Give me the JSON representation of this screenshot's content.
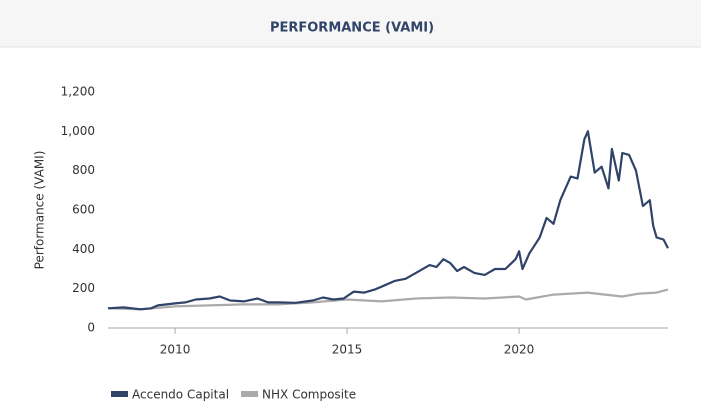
{
  "chart_data": {
    "type": "line",
    "title": "PERFORMANCE (VAMI)",
    "y_label": "Performance (VAMI)",
    "xlim": [
      2008.05,
      2024.33
    ],
    "xticks": [
      2010,
      2015,
      2020
    ],
    "ylim": [
      0,
      1200
    ],
    "yticks": [
      0,
      200,
      400,
      600,
      800,
      {
        "value": 1000,
        "label": "1,000"
      },
      {
        "value": 1200,
        "label": "1,200"
      }
    ],
    "grid": false,
    "legend": "bottom-left",
    "series": [
      {
        "name": "Accendo Capital",
        "color": "#2f4468",
        "x": [
          2008.05,
          2008.5,
          2009.0,
          2009.3,
          2009.5,
          2010.0,
          2010.3,
          2010.6,
          2011.0,
          2011.3,
          2011.6,
          2012.0,
          2012.4,
          2012.7,
          2013.0,
          2013.5,
          2014.0,
          2014.3,
          2014.6,
          2014.9,
          2015.2,
          2015.5,
          2015.8,
          2016.0,
          2016.4,
          2016.7,
          2017.0,
          2017.4,
          2017.6,
          2017.8,
          2018.0,
          2018.2,
          2018.4,
          2018.7,
          2019.0,
          2019.3,
          2019.6,
          2019.9,
          2020.0,
          2020.1,
          2020.3,
          2020.6,
          2020.8,
          2021.0,
          2021.2,
          2021.5,
          2021.7,
          2021.9,
          2022.0,
          2022.2,
          2022.4,
          2022.6,
          2022.7,
          2022.9,
          2023.0,
          2023.2,
          2023.4,
          2023.6,
          2023.8,
          2023.9,
          2024.0,
          2024.2,
          2024.33
        ],
        "values": [
          100,
          105,
          95,
          100,
          115,
          125,
          130,
          145,
          150,
          160,
          140,
          135,
          150,
          130,
          130,
          128,
          140,
          155,
          145,
          150,
          185,
          180,
          195,
          210,
          240,
          250,
          280,
          320,
          310,
          350,
          330,
          290,
          310,
          280,
          270,
          300,
          300,
          350,
          390,
          300,
          380,
          460,
          560,
          530,
          650,
          770,
          760,
          960,
          1000,
          790,
          820,
          710,
          910,
          750,
          890,
          880,
          800,
          620,
          650,
          520,
          460,
          450,
          405
        ]
      },
      {
        "name": "NHX Composite",
        "color": "#aaaaaa",
        "x": [
          2008.05,
          2009.0,
          2010.0,
          2011.0,
          2012.0,
          2013.0,
          2014.0,
          2015.0,
          2016.0,
          2017.0,
          2018.0,
          2019.0,
          2020.0,
          2020.2,
          2021.0,
          2022.0,
          2022.5,
          2023.0,
          2023.5,
          2024.0,
          2024.33
        ],
        "values": [
          100,
          95,
          110,
          115,
          120,
          120,
          130,
          145,
          135,
          150,
          155,
          150,
          160,
          145,
          170,
          180,
          170,
          160,
          175,
          180,
          195
        ]
      }
    ]
  }
}
